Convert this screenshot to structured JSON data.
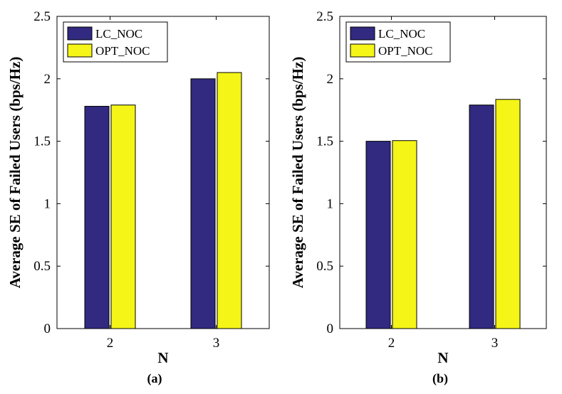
{
  "colors": {
    "lc_noc": "#312a80",
    "opt_noc": "#f5f517",
    "axis": "#000000"
  },
  "chart_data": [
    {
      "type": "bar",
      "caption": "(a)",
      "xlabel": "N",
      "ylabel": "Average SE of Failed Users (bps/Hz)",
      "categories": [
        "2",
        "3"
      ],
      "ylim": [
        0,
        2.5
      ],
      "yticks": [
        "0",
        "0.5",
        "1",
        "1.5",
        "2",
        "2.5"
      ],
      "legend_position": "top-left",
      "series": [
        {
          "name": "LC_NOC",
          "values": [
            1.78,
            2.0
          ]
        },
        {
          "name": "OPT_NOC",
          "values": [
            1.79,
            2.05
          ]
        }
      ]
    },
    {
      "type": "bar",
      "caption": "(b)",
      "xlabel": "N",
      "ylabel": "Average SE of Failed Users (bps/Hz)",
      "categories": [
        "2",
        "3"
      ],
      "ylim": [
        0,
        2.5
      ],
      "yticks": [
        "0",
        "0.5",
        "1",
        "1.5",
        "2",
        "2.5"
      ],
      "legend_position": "top-left",
      "series": [
        {
          "name": "LC_NOC",
          "values": [
            1.5,
            1.79
          ]
        },
        {
          "name": "OPT_NOC",
          "values": [
            1.505,
            1.835
          ]
        }
      ]
    }
  ]
}
